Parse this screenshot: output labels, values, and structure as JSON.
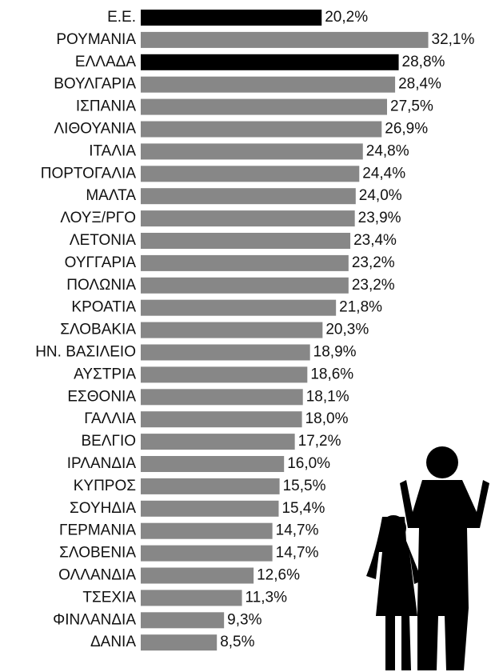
{
  "chart_data": {
    "type": "bar",
    "orientation": "horizontal",
    "categories": [
      "Ε.Ε.",
      "ΡΟΥΜΑΝΙΑ",
      "ΕΛΛΑΔΑ",
      "ΒΟΥΛΓΑΡΙΑ",
      "ΙΣΠΑΝΙΑ",
      "ΛΙΘΟΥΑΝΙΑ",
      "ΙΤΑΛΙΑ",
      "ΠΟΡΤΟΓΑΛΙΑ",
      "ΜΑΛΤΑ",
      "ΛΟΥΞ/ΡΓΟ",
      "ΛΕΤΟΝΙΑ",
      "ΟΥΓΓΑΡΙΑ",
      "ΠΟΛΩΝΙΑ",
      "ΚΡΟΑΤΙΑ",
      "ΣΛΟΒΑΚΙΑ",
      "ΗΝ. ΒΑΣΙΛΕΙΟ",
      "ΑΥΣΤΡΙΑ",
      "ΕΣΘΟΝΙΑ",
      "ΓΑΛΛΙΑ",
      "ΒΕΛΓΙΟ",
      "ΙΡΛΑΝΔΙΑ",
      "ΚΥΠΡΟΣ",
      "ΣΟΥΗΔΙΑ",
      "ΓΕΡΜΑΝΙΑ",
      "ΣΛΟΒΕΝΙΑ",
      "ΟΛΛΑΝΔΙΑ",
      "ΤΣΕΧΙΑ",
      "ΦΙΝΛΑΝΔΙΑ",
      "ΔΑΝΙΑ"
    ],
    "values": [
      20.2,
      32.1,
      28.8,
      28.4,
      27.5,
      26.9,
      24.8,
      24.4,
      24.0,
      23.9,
      23.4,
      23.2,
      23.2,
      21.8,
      20.3,
      18.9,
      18.6,
      18.1,
      18.0,
      17.2,
      16.0,
      15.5,
      15.4,
      14.7,
      14.7,
      12.6,
      11.3,
      9.3,
      8.5
    ],
    "value_labels": [
      "20,2%",
      "32,1%",
      "28,8%",
      "28,4%",
      "27,5%",
      "26,9%",
      "24,8%",
      "24,4%",
      "24,0%",
      "23,9%",
      "23,4%",
      "23,2%",
      "23,2%",
      "21,8%",
      "20,3%",
      "18,9%",
      "18,6%",
      "18,1%",
      "18,0%",
      "17,2%",
      "16,0%",
      "15,5%",
      "15,4%",
      "14,7%",
      "14,7%",
      "12,6%",
      "11,3%",
      "9,3%",
      "8,5%"
    ],
    "colors": [
      "#000000",
      "#878787",
      "#000000",
      "#878787",
      "#878787",
      "#878787",
      "#878787",
      "#878787",
      "#878787",
      "#878787",
      "#878787",
      "#878787",
      "#878787",
      "#878787",
      "#878787",
      "#878787",
      "#878787",
      "#878787",
      "#878787",
      "#878787",
      "#878787",
      "#878787",
      "#878787",
      "#878787",
      "#878787",
      "#878787",
      "#878787",
      "#878787",
      "#878787"
    ]
  }
}
